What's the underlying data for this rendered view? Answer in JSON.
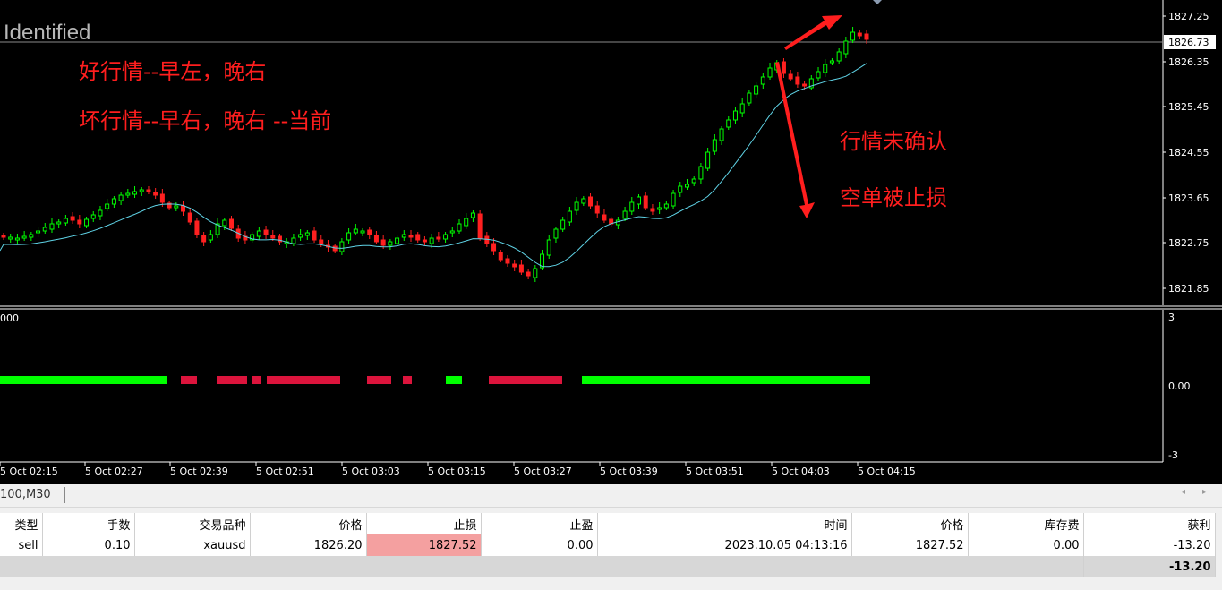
{
  "chart": {
    "watermark": "Identified",
    "annotations": {
      "line1": "好行情--早左，晚右",
      "line2": "坏行情--早右，晚右  --当前",
      "right1": "行情未确认",
      "right2": "空单被止损"
    },
    "price_axis": [
      "1827.25",
      "1826.35",
      "1825.45",
      "1824.55",
      "1823.65",
      "1822.75",
      "1821.85"
    ],
    "current_price": "1826.73",
    "indicator_axis": [
      "3",
      "0.00",
      "-3"
    ],
    "indicator_left_label": "000",
    "time_axis": [
      "5 Oct 02:15",
      "5 Oct 02:27",
      "5 Oct 02:39",
      "5 Oct 02:51",
      "5 Oct 03:03",
      "5 Oct 03:15",
      "5 Oct 03:27",
      "5 Oct 03:39",
      "5 Oct 03:51",
      "5 Oct 04:03",
      "5 Oct 04:15"
    ],
    "colors": {
      "bull": "#00ff00",
      "bear": "#ff2020",
      "ma": "#5fd3e6",
      "signal_green": "#00ff00",
      "signal_red": "#dc143c"
    }
  },
  "symbol_tab": "100,M30",
  "nav": {
    "left": "◂",
    "right": "▸"
  },
  "table": {
    "headers": [
      "类型",
      "手数",
      "交易品种",
      "价格",
      "止损",
      "止盈",
      "时间",
      "价格",
      "库存费",
      "获利"
    ],
    "rows": [
      [
        "sell",
        "0.10",
        "xauusd",
        "1826.20",
        "1827.52",
        "0.00",
        "2023.10.05 04:13:16",
        "1827.52",
        "0.00",
        "-13.20"
      ]
    ],
    "total": "-13.20"
  }
}
